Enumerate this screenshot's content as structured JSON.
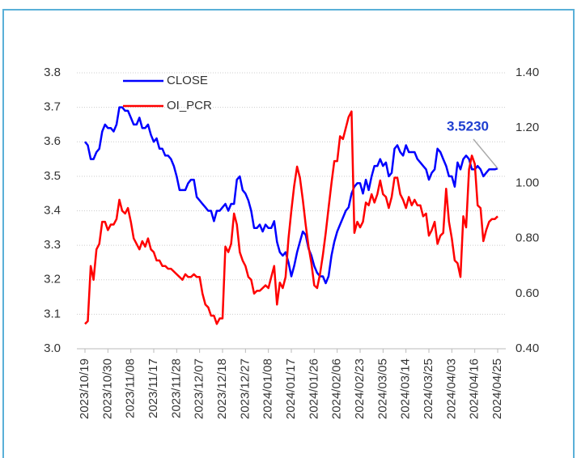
{
  "chart_data": {
    "type": "line",
    "categories": [
      "2023/10/19",
      null,
      null,
      null,
      null,
      null,
      null,
      null,
      "2023/10/30",
      null,
      null,
      null,
      null,
      null,
      null,
      null,
      "2023/11/08",
      null,
      null,
      null,
      null,
      null,
      null,
      null,
      "2023/11/17",
      null,
      null,
      null,
      null,
      null,
      null,
      null,
      "2023/11/28",
      null,
      null,
      null,
      null,
      null,
      null,
      null,
      "2023/12/07",
      null,
      null,
      null,
      null,
      null,
      null,
      null,
      "2023/12/18",
      null,
      null,
      null,
      null,
      null,
      null,
      null,
      "2023/12/27",
      null,
      null,
      null,
      null,
      null,
      null,
      null,
      "2024/01/08",
      null,
      null,
      null,
      null,
      null,
      null,
      null,
      "2024/01/17",
      null,
      null,
      null,
      null,
      null,
      null,
      null,
      "2024/01/26",
      null,
      null,
      null,
      null,
      null,
      null,
      null,
      "2024/02/06",
      null,
      null,
      null,
      null,
      null,
      null,
      null,
      "2024/02/23",
      null,
      null,
      null,
      null,
      null,
      null,
      null,
      "2024/03/05",
      null,
      null,
      null,
      null,
      null,
      null,
      null,
      "2024/03/14",
      null,
      null,
      null,
      null,
      null,
      null,
      null,
      "2024/03/25",
      null,
      null,
      null,
      null,
      null,
      null,
      null,
      "2024/04/03",
      null,
      null,
      null,
      null,
      null,
      null,
      null,
      "2024/04/16",
      null,
      null,
      null,
      null,
      null,
      null,
      null,
      "2024/04/25"
    ],
    "series": [
      {
        "name": "CLOSE",
        "color": "#0000ff",
        "axis": "y",
        "values": [
          3.6,
          3.59,
          3.55,
          3.55,
          3.57,
          3.58,
          3.63,
          3.65,
          3.64,
          3.64,
          3.63,
          3.65,
          3.7,
          3.7,
          3.69,
          3.69,
          3.67,
          3.65,
          3.65,
          3.67,
          3.64,
          3.64,
          3.65,
          3.62,
          3.6,
          3.61,
          3.58,
          3.58,
          3.56,
          3.56,
          3.55,
          3.53,
          3.5,
          3.46,
          3.46,
          3.46,
          3.48,
          3.49,
          3.49,
          3.44,
          3.43,
          3.42,
          3.41,
          3.4,
          3.4,
          3.37,
          3.4,
          3.4,
          3.41,
          3.42,
          3.4,
          3.42,
          3.42,
          3.49,
          3.5,
          3.46,
          3.45,
          3.43,
          3.4,
          3.35,
          3.35,
          3.36,
          3.34,
          3.36,
          3.35,
          3.35,
          3.37,
          3.31,
          3.28,
          3.27,
          3.28,
          3.25,
          3.21,
          3.24,
          3.28,
          3.31,
          3.34,
          3.33,
          3.29,
          3.27,
          3.24,
          3.22,
          3.21,
          3.21,
          3.19,
          3.21,
          3.27,
          3.31,
          3.34,
          3.36,
          3.38,
          3.4,
          3.41,
          3.45,
          3.47,
          3.48,
          3.48,
          3.45,
          3.49,
          3.46,
          3.5,
          3.53,
          3.53,
          3.55,
          3.53,
          3.54,
          3.5,
          3.51,
          3.58,
          3.59,
          3.57,
          3.56,
          3.59,
          3.57,
          3.57,
          3.57,
          3.55,
          3.54,
          3.53,
          3.52,
          3.49,
          3.51,
          3.52,
          3.58,
          3.57,
          3.55,
          3.53,
          3.5,
          3.5,
          3.47,
          3.54,
          3.52,
          3.55,
          3.56,
          3.55,
          3.52,
          3.52,
          3.53,
          3.52,
          3.5,
          3.51,
          3.52,
          3.52,
          3.52,
          3.523
        ]
      },
      {
        "name": "OI_PCR",
        "color": "#ff0000",
        "axis": "y2",
        "values": [
          0.49,
          0.5,
          0.7,
          0.65,
          0.76,
          0.78,
          0.86,
          0.86,
          0.83,
          0.85,
          0.85,
          0.87,
          0.94,
          0.9,
          0.89,
          0.91,
          0.86,
          0.8,
          0.78,
          0.76,
          0.79,
          0.77,
          0.8,
          0.76,
          0.75,
          0.72,
          0.72,
          0.7,
          0.7,
          0.69,
          0.69,
          0.68,
          0.67,
          0.66,
          0.65,
          0.67,
          0.66,
          0.66,
          0.67,
          0.66,
          0.66,
          0.6,
          0.56,
          0.55,
          0.52,
          0.52,
          0.49,
          0.51,
          0.51,
          0.77,
          0.75,
          0.78,
          0.89,
          0.85,
          0.75,
          0.72,
          0.7,
          0.66,
          0.65,
          0.6,
          0.61,
          0.61,
          0.62,
          0.63,
          0.62,
          0.66,
          0.7,
          0.56,
          0.64,
          0.62,
          0.66,
          0.8,
          0.9,
          0.99,
          1.06,
          1.02,
          0.94,
          0.85,
          0.77,
          0.71,
          0.63,
          0.62,
          0.67,
          0.74,
          0.82,
          0.91,
          1.0,
          1.08,
          1.08,
          1.17,
          1.16,
          1.2,
          1.24,
          1.26,
          0.82,
          0.86,
          0.84,
          0.86,
          0.93,
          0.92,
          0.96,
          0.93,
          0.96,
          1.01,
          0.96,
          0.95,
          0.91,
          0.95,
          1.02,
          1.02,
          0.96,
          0.94,
          0.91,
          0.95,
          0.92,
          0.94,
          0.92,
          0.92,
          0.88,
          0.89,
          0.81,
          0.83,
          0.86,
          0.78,
          0.81,
          0.82,
          0.98,
          0.86,
          0.8,
          0.72,
          0.71,
          0.66,
          0.88,
          0.84,
          1.05,
          1.1,
          1.07,
          0.92,
          0.91,
          0.79,
          0.83,
          0.86,
          0.87,
          0.87,
          0.88
        ]
      }
    ],
    "ylim": [
      3.0,
      3.8
    ],
    "yticks": [
      {
        "value": 3,
        "label": "3.0"
      },
      3.1,
      3.2,
      3.3,
      3.4,
      3.5,
      3.6,
      3.7,
      3.8
    ],
    "y2lim": [
      0.4,
      1.4
    ],
    "y2ticks": [
      {
        "value": 0.4,
        "label": "0.40"
      },
      {
        "value": 0.6,
        "label": "0.60"
      },
      {
        "value": 0.8,
        "label": "0.80"
      },
      {
        "value": 1.0,
        "label": "1.00"
      },
      {
        "value": 1.2,
        "label": "1.20"
      },
      {
        "value": 1.4,
        "label": "1.40"
      }
    ],
    "grid": true,
    "legend": "top-left",
    "annotation": {
      "text": "3.5230",
      "color": "#1f3fd0"
    }
  }
}
